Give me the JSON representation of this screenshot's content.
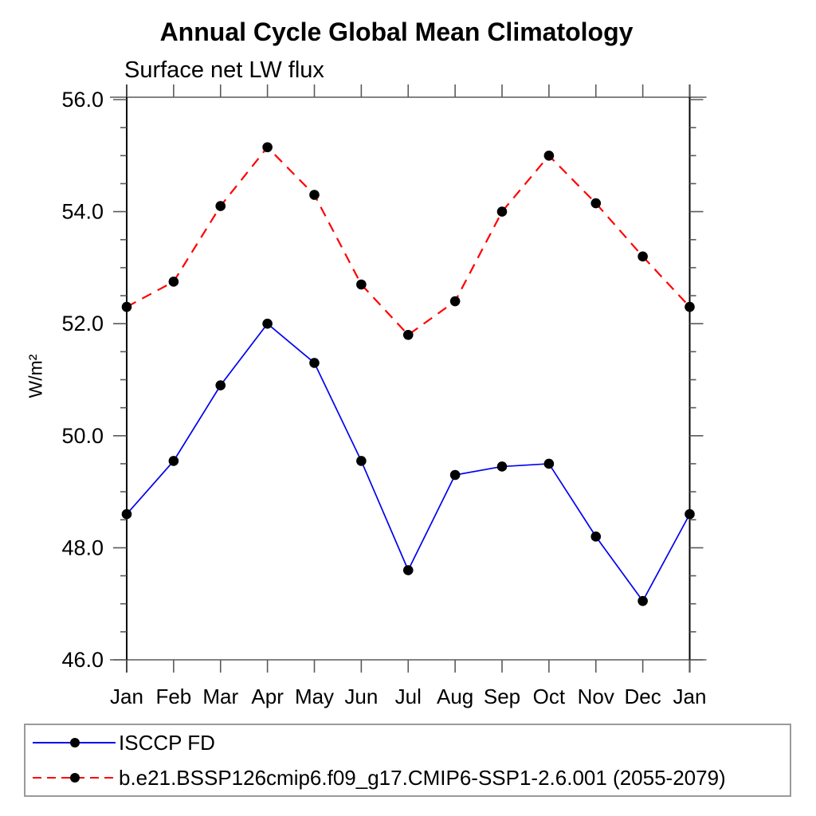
{
  "chart_data": {
    "type": "line",
    "title": "Annual Cycle Global Mean Climatology",
    "subtitle": "Surface net LW flux",
    "ylabel": "W/m²",
    "xlabel": "",
    "categories": [
      "Jan",
      "Feb",
      "Mar",
      "Apr",
      "May",
      "Jun",
      "Jul",
      "Aug",
      "Sep",
      "Oct",
      "Nov",
      "Dec",
      "Jan"
    ],
    "series": [
      {
        "name": "ISCCP FD",
        "color": "#0000ee",
        "line_style": "solid",
        "marker": "filled-circle",
        "marker_color": "#000000",
        "values": [
          48.6,
          49.55,
          50.9,
          52.0,
          51.3,
          49.55,
          47.6,
          49.3,
          49.45,
          49.5,
          48.2,
          47.05,
          48.6
        ]
      },
      {
        "name": "b.e21.BSSP126cmip6.f09_g17.CMIP6-SSP1-2.6.001 (2055-2079)",
        "color": "#ff0000",
        "line_style": "dashed",
        "marker": "filled-circle",
        "marker_color": "#000000",
        "values": [
          52.3,
          52.75,
          54.1,
          55.15,
          54.3,
          52.7,
          51.8,
          52.4,
          54.0,
          55.0,
          54.15,
          53.2,
          52.3
        ]
      }
    ],
    "ylim": [
      46.0,
      56.0
    ],
    "ytick_major_values": [
      46.0,
      48.0,
      50.0,
      52.0,
      54.0,
      56.0
    ],
    "ytick_labels": [
      "46.0",
      "48.0",
      "50.0",
      "52.0",
      "54.0",
      "56.0"
    ],
    "ytick_minor_step": 0.5,
    "grid": false,
    "tick_direction": "out",
    "frame": "box",
    "legend_position": "bottom-left-box",
    "axis_color": "#000000",
    "frame_line_color": "#5a5a5a"
  }
}
